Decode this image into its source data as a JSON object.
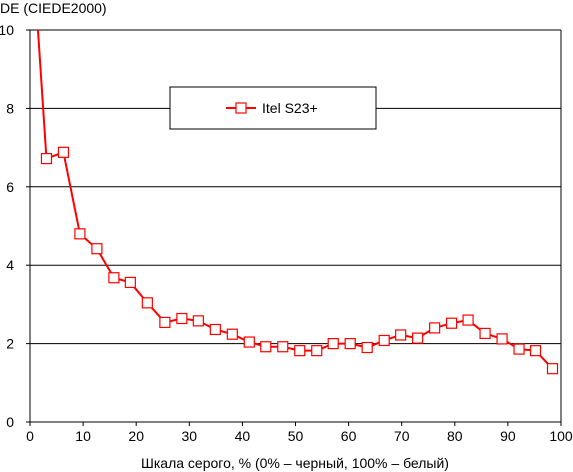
{
  "chart_data": {
    "type": "line",
    "title": "",
    "ylabel": "DE (CIEDE2000)",
    "xlabel": "Шкала серого, % (0% – черный, 100% – белый)",
    "xlim": [
      0,
      100
    ],
    "ylim": [
      0,
      10
    ],
    "xticks": [
      "0",
      "10",
      "20",
      "30",
      "40",
      "50",
      "60",
      "70",
      "80",
      "90",
      "100"
    ],
    "yticks": [
      "0",
      "2",
      "4",
      "6",
      "8",
      "10"
    ],
    "grid": "horizontal",
    "legend_position": "top-center",
    "series": [
      {
        "name": "Itel S23+",
        "color": "#ff0000",
        "marker": "square",
        "points": [
          [
            1.5,
            10.0
          ],
          [
            3.1,
            6.72
          ],
          [
            6.3,
            6.88
          ],
          [
            9.4,
            4.8
          ],
          [
            12.6,
            4.42
          ],
          [
            15.8,
            3.68
          ],
          [
            18.9,
            3.56
          ],
          [
            22.1,
            3.04
          ],
          [
            25.4,
            2.54
          ],
          [
            28.6,
            2.64
          ],
          [
            31.7,
            2.58
          ],
          [
            34.9,
            2.36
          ],
          [
            38.1,
            2.24
          ],
          [
            41.3,
            2.04
          ],
          [
            44.4,
            1.92
          ],
          [
            47.6,
            1.92
          ],
          [
            50.8,
            1.82
          ],
          [
            54.0,
            1.82
          ],
          [
            57.1,
            2.0
          ],
          [
            60.3,
            2.0
          ],
          [
            63.5,
            1.9
          ],
          [
            66.7,
            2.08
          ],
          [
            69.8,
            2.22
          ],
          [
            73.0,
            2.14
          ],
          [
            76.2,
            2.4
          ],
          [
            79.4,
            2.52
          ],
          [
            82.5,
            2.6
          ],
          [
            85.7,
            2.26
          ],
          [
            88.9,
            2.12
          ],
          [
            92.1,
            1.86
          ],
          [
            95.2,
            1.82
          ],
          [
            98.4,
            1.36
          ]
        ]
      }
    ]
  }
}
